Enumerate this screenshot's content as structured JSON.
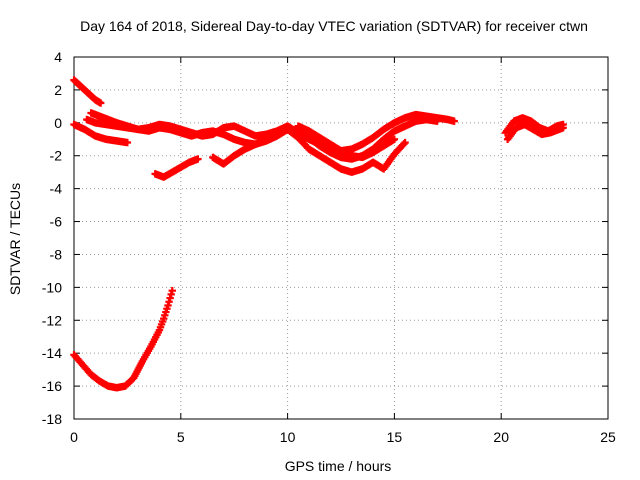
{
  "chart_data": {
    "type": "scatter",
    "title": "Day 164 of 2018, Sidereal Day-to-day VTEC variation (SDTVAR) for receiver ctwn",
    "xlabel": "GPS time / hours",
    "ylabel": "SDTVAR / TECUs",
    "xlim": [
      0,
      25
    ],
    "ylim": [
      -18,
      4
    ],
    "xticks": [
      0,
      5,
      10,
      15,
      20,
      25
    ],
    "yticks": [
      4,
      2,
      0,
      -2,
      -4,
      -6,
      -8,
      -10,
      -12,
      -14,
      -16,
      -18
    ],
    "grid": true,
    "series": [
      {
        "name": "ctwn",
        "color": "#ff0000",
        "segments": [
          {
            "x": [
              0.0,
              0.25,
              0.5,
              0.75,
              1.0,
              1.25
            ],
            "y": [
              2.6,
              2.3,
              2.0,
              1.7,
              1.4,
              1.2
            ]
          },
          {
            "x": [
              0.0,
              0.5,
              1.0,
              1.5,
              2.0,
              2.5
            ],
            "y": [
              -0.1,
              -0.4,
              -0.8,
              -1.0,
              -1.1,
              -1.2
            ]
          },
          {
            "x": [
              0.6,
              1.0,
              1.5,
              2.0,
              2.5,
              3.0,
              3.5,
              4.0,
              4.5,
              5.0,
              5.5,
              6.0,
              6.5,
              7.0,
              7.5,
              8.0,
              8.5,
              9.0,
              9.5,
              10.0,
              10.5,
              11.0,
              11.5,
              12.0,
              12.5,
              13.0,
              13.5,
              14.0,
              14.5,
              15.0,
              15.5,
              16.0,
              16.5,
              17.0,
              17.5,
              17.8
            ],
            "y": [
              0.2,
              0.0,
              -0.1,
              -0.2,
              -0.3,
              -0.4,
              -0.3,
              -0.1,
              -0.2,
              -0.4,
              -0.6,
              -0.8,
              -0.7,
              -0.3,
              -0.2,
              -0.5,
              -0.8,
              -0.7,
              -0.5,
              -0.2,
              -0.6,
              -1.0,
              -1.3,
              -1.5,
              -1.7,
              -1.6,
              -1.3,
              -0.9,
              -0.4,
              0.0,
              0.3,
              0.5,
              0.4,
              0.3,
              0.2,
              0.1
            ]
          },
          {
            "x": [
              0.8,
              1.2,
              1.6,
              2.0,
              2.5,
              3.0,
              3.5,
              4.0,
              4.5,
              5.0,
              5.5,
              6.0,
              6.5,
              7.0,
              7.5,
              8.0,
              8.5,
              9.0,
              9.5,
              10.0,
              10.5,
              11.0,
              11.5,
              12.0,
              12.5,
              13.0,
              13.5,
              14.0,
              14.5,
              15.0,
              15.5,
              16.0,
              16.5,
              17.0
            ],
            "y": [
              0.6,
              0.4,
              0.2,
              0.0,
              -0.2,
              -0.4,
              -0.5,
              -0.3,
              -0.4,
              -0.6,
              -0.8,
              -0.6,
              -0.5,
              -0.7,
              -1.0,
              -1.2,
              -1.3,
              -1.1,
              -0.8,
              -0.4,
              -0.5,
              -0.9,
              -1.4,
              -1.8,
              -2.1,
              -2.2,
              -2.0,
              -1.6,
              -1.0,
              -0.5,
              -0.2,
              0.1,
              0.2,
              0.1
            ]
          },
          {
            "x": [
              3.8,
              4.2,
              4.6,
              5.0,
              5.4,
              5.8
            ],
            "y": [
              -3.1,
              -3.3,
              -3.0,
              -2.7,
              -2.4,
              -2.2
            ]
          },
          {
            "x": [
              6.5,
              7.0,
              7.5,
              8.0,
              8.5,
              9.0,
              9.5,
              10.0,
              10.5,
              11.0,
              11.5,
              12.0,
              12.5,
              13.0,
              13.5,
              14.0,
              14.5,
              15.0,
              15.5
            ],
            "y": [
              -2.1,
              -2.5,
              -2.0,
              -1.6,
              -1.3,
              -1.0,
              -0.7,
              -0.4,
              -0.9,
              -1.6,
              -2.0,
              -2.4,
              -2.8,
              -3.0,
              -2.8,
              -2.4,
              -2.8,
              -1.9,
              -1.2
            ]
          },
          {
            "x": [
              10.5,
              11.0,
              11.5,
              12.0,
              12.5,
              13.0,
              13.5,
              14.0,
              14.5,
              15.0
            ],
            "y": [
              -0.2,
              -0.5,
              -0.9,
              -1.3,
              -1.7,
              -2.0,
              -2.1,
              -1.8,
              -1.4,
              -1.0
            ]
          },
          {
            "x": [
              20.2,
              20.6,
              21.0,
              21.4,
              21.8,
              22.2,
              22.6,
              22.9
            ],
            "y": [
              -0.6,
              0.1,
              0.3,
              0.1,
              -0.3,
              -0.5,
              -0.2,
              -0.1
            ]
          },
          {
            "x": [
              20.3,
              20.7,
              21.1,
              21.5,
              21.9,
              22.3,
              22.7,
              22.9
            ],
            "y": [
              -1.0,
              -0.3,
              -0.1,
              -0.4,
              -0.7,
              -0.6,
              -0.4,
              -0.3
            ]
          },
          {
            "x": [
              0.0,
              0.4,
              0.8,
              1.2,
              1.6,
              2.0,
              2.4,
              2.8,
              3.0,
              3.2,
              3.6,
              4.0,
              4.2,
              4.4,
              4.6
            ],
            "y": [
              -14.1,
              -14.7,
              -15.3,
              -15.7,
              -16.0,
              -16.1,
              -16.0,
              -15.5,
              -15.0,
              -14.5,
              -13.6,
              -12.6,
              -11.9,
              -11.1,
              -10.2
            ]
          }
        ]
      }
    ]
  }
}
